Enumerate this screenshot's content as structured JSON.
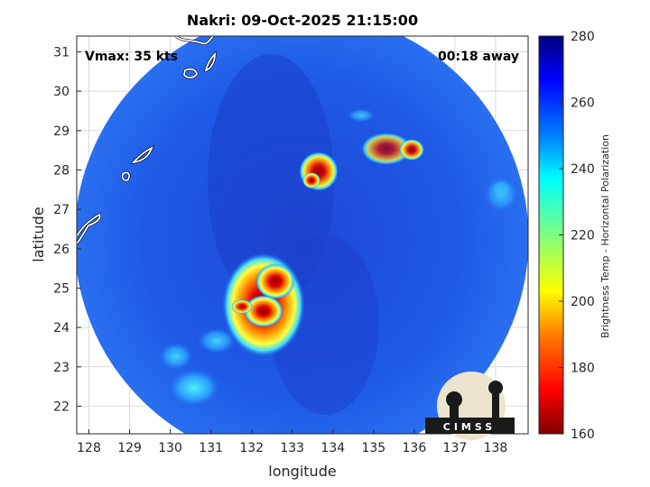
{
  "title": "Nakri: 09-Oct-2025 21:15:00",
  "vmax_label": "Vmax: 35 kts",
  "away_label": "00:18 away",
  "map": {
    "xlabel": "longitude",
    "ylabel": "latitude",
    "xlim": [
      127.7,
      138.8
    ],
    "ylim": [
      21.3,
      31.4
    ],
    "xticks": [
      "128",
      "129",
      "130",
      "131",
      "132",
      "133",
      "134",
      "135",
      "136",
      "137",
      "138"
    ],
    "yticks": [
      "22",
      "23",
      "24",
      "25",
      "26",
      "27",
      "28",
      "29",
      "30",
      "31"
    ],
    "grid": true
  },
  "colorbar": {
    "label": "Brightness Temp - Horizontal Polarization",
    "ticks": [
      "280",
      "260",
      "240",
      "220",
      "200",
      "180",
      "160"
    ],
    "range": [
      160,
      280
    ],
    "colormap": "jet"
  },
  "logo": {
    "text": "CIMSS"
  },
  "colors": {
    "background_scene": "#1f5fe6",
    "coastline": "#ffffff",
    "grid": "#d9d9d9"
  }
}
